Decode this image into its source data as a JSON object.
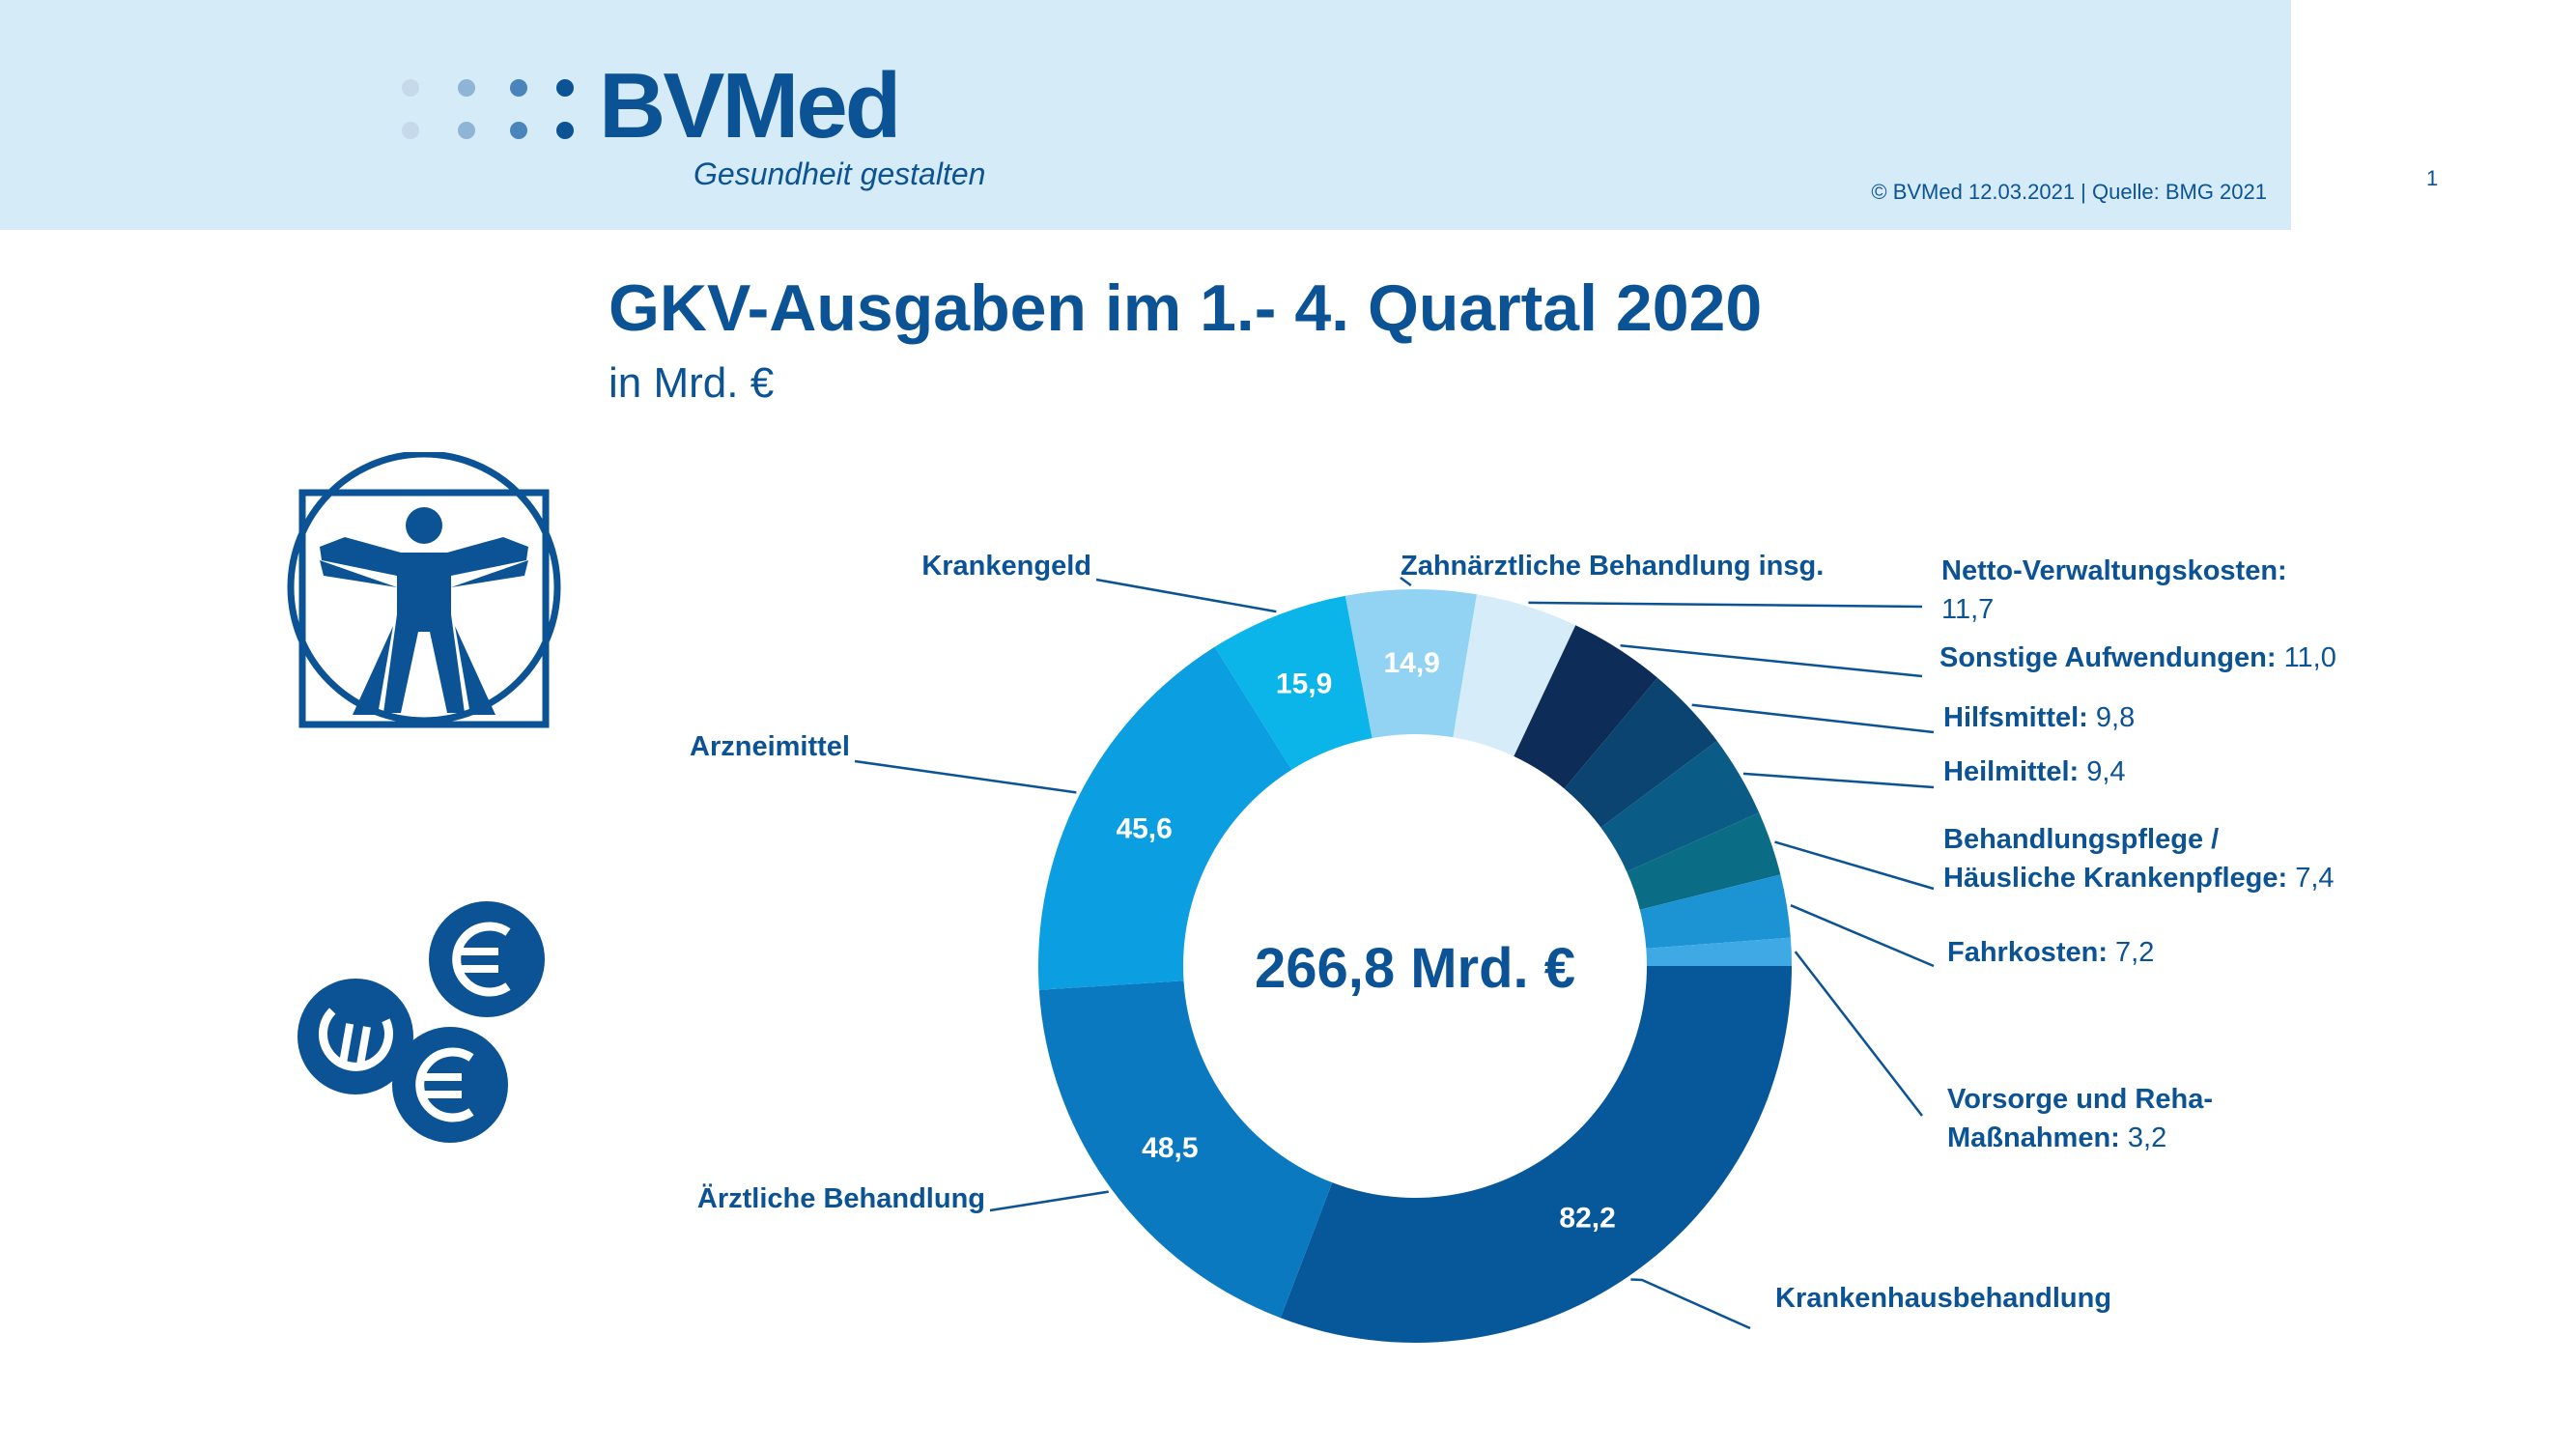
{
  "header": {
    "logo_text": "BVMed",
    "tagline": "Gesundheit gestalten",
    "copyright": "© BVMed 12.03.2021 | Quelle: BMG 2021",
    "page_number": "1"
  },
  "colors": {
    "brand": "#0b5394",
    "header_background": "#d6ebf8"
  },
  "icons": [
    "vitruvian-man-icon",
    "euro-coins-icon"
  ],
  "chart_data": {
    "type": "pie",
    "variant": "donut",
    "title": "GKV-Ausgaben im 1.- 4. Quartal 2020",
    "subtitle": "in Mrd. €",
    "center_label": "266,8 Mrd. €",
    "total": 266.8,
    "unit": "Mrd. €",
    "slices": [
      {
        "label": "Krankenhausbehandlung",
        "value": 82.2,
        "value_text": "82,2",
        "color": "#06589a",
        "label_lines": [
          "Krankenhausbehandlung"
        ],
        "value_in_label": false
      },
      {
        "label": "Ärztliche Behandlung",
        "value": 48.5,
        "value_text": "48,5",
        "color": "#0a79c0",
        "label_lines": [
          "Ärztliche Behandlung"
        ],
        "value_in_label": false
      },
      {
        "label": "Arzneimittel",
        "value": 45.6,
        "value_text": "45,6",
        "color": "#0b9ee0",
        "label_lines": [
          "Arzneimittel"
        ],
        "value_in_label": false
      },
      {
        "label": "Krankengeld",
        "value": 15.9,
        "value_text": "15,9",
        "color": "#0bb5e9",
        "label_lines": [
          "Krankengeld"
        ],
        "value_in_label": false
      },
      {
        "label": "Zahnärztliche Behandlung insg.",
        "value": 14.9,
        "value_text": "14,9",
        "color": "#92d3f3",
        "label_lines": [
          "Zahnärztliche Behandlung insg."
        ],
        "value_in_label": false
      },
      {
        "label": "Netto-Verwaltungskosten",
        "value": 11.7,
        "value_text": "11,7",
        "color": "#d6ecf9",
        "label_lines": [
          "Netto-Verwaltungskosten:"
        ],
        "value_in_label": true
      },
      {
        "label": "Sonstige Aufwendungen",
        "value": 11.0,
        "value_text": "11,0",
        "color": "#0d2c57",
        "label_lines": [
          "Sonstige Aufwendungen:"
        ],
        "value_in_label": true
      },
      {
        "label": "Hilfsmittel",
        "value": 9.8,
        "value_text": "9,8",
        "color": "#0b4470",
        "label_lines": [
          "Hilfsmittel:"
        ],
        "value_in_label": true
      },
      {
        "label": "Heilmittel",
        "value": 9.4,
        "value_text": "9,4",
        "color": "#0a5b85",
        "label_lines": [
          "Heilmittel:"
        ],
        "value_in_label": true
      },
      {
        "label": "Behandlungspflege / Häusliche Krankenpflege",
        "value": 7.4,
        "value_text": "7,4",
        "color": "#0a6c85",
        "label_lines": [
          "Behandlungspflege /",
          "Häusliche Krankenpflege:"
        ],
        "value_in_label": true
      },
      {
        "label": "Fahrkosten",
        "value": 7.2,
        "value_text": "7,2",
        "color": "#1c94d3",
        "label_lines": [
          "Fahrkosten:"
        ],
        "value_in_label": true
      },
      {
        "label": "Vorsorge und Reha-Maßnahmen",
        "value": 3.2,
        "value_text": "3,2",
        "color": "#3fa9e5",
        "label_lines": [
          "Vorsorge und Reha-",
          "Maßnahmen:"
        ],
        "value_in_label": true
      }
    ]
  }
}
